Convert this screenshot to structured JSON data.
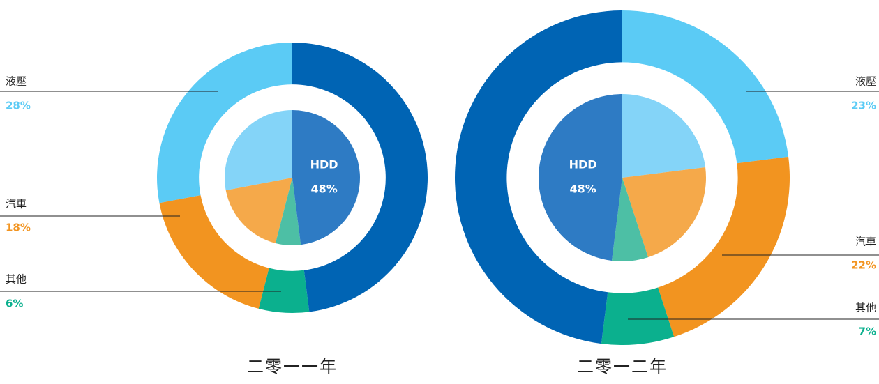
{
  "chart_data": [
    {
      "type": "pie",
      "title": "二零一一年",
      "direction": "counterclockwise",
      "categories": [
        "液壓",
        "汽車",
        "其他",
        "HDD"
      ],
      "values": [
        28,
        18,
        6,
        48
      ],
      "value_labels": [
        "28%",
        "18%",
        "6%",
        "48%"
      ],
      "colors": [
        "#5bcbf5",
        "#f29420",
        "#0bb08e",
        "#0064b4"
      ],
      "inner_colors": [
        "#84d4f8",
        "#f5a94a",
        "#4dbfa5",
        "#2e7bc4"
      ]
    },
    {
      "type": "pie",
      "title": "二零一二年",
      "direction": "clockwise",
      "categories": [
        "液壓",
        "汽車",
        "其他",
        "HDD"
      ],
      "values": [
        23,
        22,
        7,
        48
      ],
      "value_labels": [
        "23%",
        "22%",
        "7%",
        "48%"
      ],
      "colors": [
        "#5bcbf5",
        "#f29420",
        "#0bb08e",
        "#0064b4"
      ],
      "inner_colors": [
        "#84d4f8",
        "#f5a94a",
        "#4dbfa5",
        "#2e7bc4"
      ]
    }
  ]
}
